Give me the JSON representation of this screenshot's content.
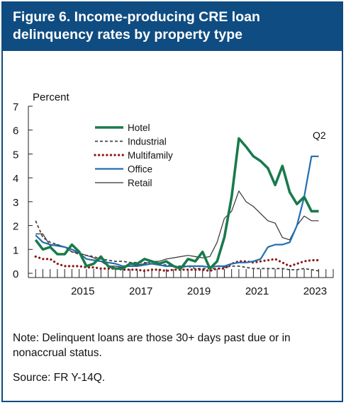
{
  "title": "Figure 6. Income-producing CRE loan delinquency rates by property type",
  "note": "Note: Delinquent loans are those 30+ days past due or in nonaccrual status.",
  "source": "Source: FR Y-14Q.",
  "colors": {
    "header": "#0f4c81",
    "hotel": "#1a7a4c",
    "industrial": "#444444",
    "multifamily": "#8b1a1a",
    "office": "#1f6fb2",
    "retail": "#333333"
  },
  "chart_data": {
    "type": "line",
    "ylabel": "Percent",
    "ylim": [
      0,
      7
    ],
    "yticks": [
      0,
      1,
      2,
      3,
      4,
      5,
      6,
      7
    ],
    "xlim": [
      2013.25,
      2023.75
    ],
    "xticks": [
      2015,
      2017,
      2019,
      2021,
      2023
    ],
    "annotation": "Q2",
    "legend_position": "upper-left",
    "series": [
      {
        "name": "Hotel",
        "style": "thick-solid",
        "x": [
          2013.5,
          2013.75,
          2014,
          2014.25,
          2014.5,
          2014.75,
          2015,
          2015.25,
          2015.5,
          2015.75,
          2016,
          2016.25,
          2016.5,
          2016.75,
          2017,
          2017.25,
          2017.5,
          2017.75,
          2018,
          2018.25,
          2018.5,
          2018.75,
          2019,
          2019.25,
          2019.5,
          2019.75,
          2020,
          2020.25,
          2020.5,
          2020.75,
          2021,
          2021.25,
          2021.5,
          2021.75,
          2022,
          2022.25,
          2022.5,
          2022.75,
          2023,
          2023.25
        ],
        "values": [
          1.4,
          1.0,
          1.1,
          0.8,
          0.8,
          1.2,
          0.9,
          0.3,
          0.4,
          0.7,
          0.3,
          0.2,
          0.2,
          0.4,
          0.4,
          0.6,
          0.5,
          0.4,
          0.5,
          0.3,
          0.2,
          0.6,
          0.5,
          0.9,
          0.2,
          0.5,
          1.5,
          3.2,
          5.65,
          5.3,
          4.9,
          4.7,
          4.4,
          3.7,
          4.5,
          3.4,
          2.9,
          3.2,
          2.6,
          2.6
        ]
      },
      {
        "name": "Industrial",
        "style": "dashed",
        "x": [
          2013.5,
          2013.75,
          2014,
          2014.25,
          2014.5,
          2014.75,
          2015,
          2015.25,
          2015.5,
          2015.75,
          2016,
          2016.25,
          2016.5,
          2016.75,
          2017,
          2017.25,
          2017.5,
          2017.75,
          2018,
          2018.25,
          2018.5,
          2018.75,
          2019,
          2019.25,
          2019.5,
          2019.75,
          2020,
          2020.25,
          2020.5,
          2020.75,
          2021,
          2021.25,
          2021.5,
          2021.75,
          2022,
          2022.25,
          2022.5,
          2022.75,
          2023,
          2023.25
        ],
        "values": [
          2.2,
          1.5,
          1.3,
          1.2,
          1.1,
          0.9,
          0.8,
          0.75,
          0.7,
          0.6,
          0.55,
          0.5,
          0.5,
          0.45,
          0.45,
          0.45,
          0.4,
          0.35,
          0.35,
          0.3,
          0.3,
          0.3,
          0.2,
          0.2,
          0.2,
          0.2,
          0.25,
          0.3,
          0.3,
          0.25,
          0.2,
          0.2,
          0.2,
          0.2,
          0.2,
          0.15,
          0.15,
          0.2,
          0.15,
          0.1
        ]
      },
      {
        "name": "Multifamily",
        "style": "dotted",
        "x": [
          2013.5,
          2013.75,
          2014,
          2014.25,
          2014.5,
          2014.75,
          2015,
          2015.25,
          2015.5,
          2015.75,
          2016,
          2016.25,
          2016.5,
          2016.75,
          2017,
          2017.25,
          2017.5,
          2017.75,
          2018,
          2018.25,
          2018.5,
          2018.75,
          2019,
          2019.25,
          2019.5,
          2019.75,
          2020,
          2020.25,
          2020.5,
          2020.75,
          2021,
          2021.25,
          2021.5,
          2021.75,
          2022,
          2022.25,
          2022.5,
          2022.75,
          2023,
          2023.25
        ],
        "values": [
          0.7,
          0.6,
          0.6,
          0.4,
          0.3,
          0.3,
          0.3,
          0.25,
          0.25,
          0.2,
          0.2,
          0.2,
          0.15,
          0.15,
          0.15,
          0.1,
          0.15,
          0.15,
          0.1,
          0.15,
          0.15,
          0.15,
          0.15,
          0.15,
          0.1,
          0.2,
          0.2,
          0.4,
          0.5,
          0.5,
          0.45,
          0.5,
          0.55,
          0.6,
          0.45,
          0.3,
          0.4,
          0.5,
          0.55,
          0.55
        ]
      },
      {
        "name": "Office",
        "style": "solid",
        "x": [
          2013.5,
          2013.75,
          2014,
          2014.25,
          2014.5,
          2014.75,
          2015,
          2015.25,
          2015.5,
          2015.75,
          2016,
          2016.25,
          2016.5,
          2016.75,
          2017,
          2017.25,
          2017.5,
          2017.75,
          2018,
          2018.25,
          2018.5,
          2018.75,
          2019,
          2019.25,
          2019.5,
          2019.75,
          2020,
          2020.25,
          2020.5,
          2020.75,
          2021,
          2021.25,
          2021.5,
          2021.75,
          2022,
          2022.25,
          2022.5,
          2022.75,
          2023,
          2023.25
        ],
        "values": [
          1.6,
          1.3,
          1.2,
          1.15,
          1.1,
          1.0,
          0.85,
          0.6,
          0.55,
          0.5,
          0.45,
          0.4,
          0.3,
          0.3,
          0.3,
          0.35,
          0.4,
          0.35,
          0.3,
          0.3,
          0.25,
          0.3,
          0.3,
          0.3,
          0.25,
          0.3,
          0.3,
          0.4,
          0.45,
          0.45,
          0.5,
          0.6,
          1.1,
          1.2,
          1.2,
          1.3,
          2.0,
          3.2,
          4.9,
          4.9
        ]
      },
      {
        "name": "Retail",
        "style": "thin-solid",
        "x": [
          2013.5,
          2013.75,
          2014,
          2014.25,
          2014.5,
          2014.75,
          2015,
          2015.25,
          2015.5,
          2015.75,
          2016,
          2016.25,
          2016.5,
          2016.75,
          2017,
          2017.25,
          2017.5,
          2017.75,
          2018,
          2018.25,
          2018.5,
          2018.75,
          2019,
          2019.25,
          2019.5,
          2019.75,
          2020,
          2020.25,
          2020.5,
          2020.75,
          2021,
          2021.25,
          2021.5,
          2021.75,
          2022,
          2022.25,
          2022.5,
          2022.75,
          2023,
          2023.25
        ],
        "values": [
          1.65,
          1.65,
          1.15,
          1.2,
          1.1,
          0.9,
          0.85,
          0.75,
          0.65,
          0.5,
          0.3,
          0.3,
          0.25,
          0.3,
          0.35,
          0.4,
          0.5,
          0.5,
          0.6,
          0.65,
          0.7,
          0.75,
          0.7,
          0.65,
          0.7,
          1.3,
          2.3,
          2.6,
          3.45,
          3.0,
          2.8,
          2.5,
          2.2,
          2.1,
          1.5,
          1.4,
          2.0,
          2.4,
          2.2,
          2.2
        ]
      }
    ]
  }
}
